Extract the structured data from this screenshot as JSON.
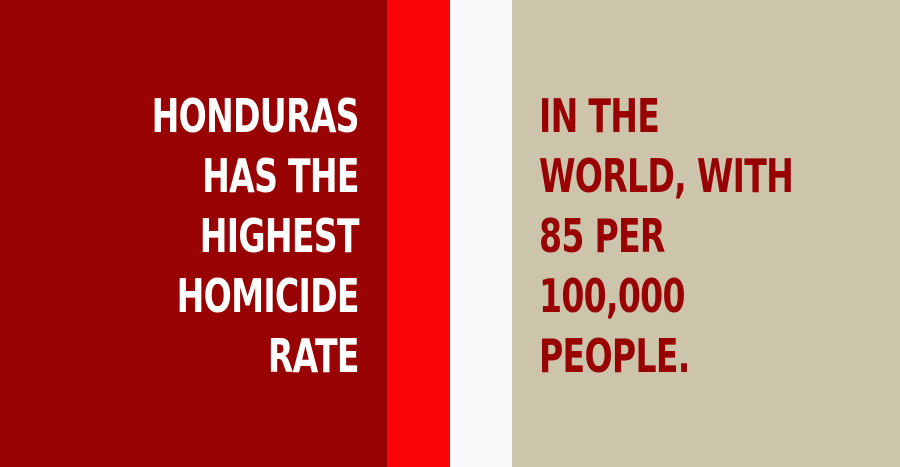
{
  "colors": {
    "left_panel": "#980203",
    "red_stripe": "#fb050a",
    "white_stripe": "#f8f9fb",
    "right_panel": "#ccc5ac",
    "left_text": "#ffffff",
    "right_text": "#980203"
  },
  "left_text": {
    "lines": [
      "HONDURAS",
      "HAS THE",
      "HIGHEST",
      "HOMICIDE",
      "RATE"
    ]
  },
  "right_text": {
    "lines": [
      "IN THE",
      "WORLD, WITH",
      "85 PER",
      "100,000",
      "PEOPLE."
    ]
  }
}
